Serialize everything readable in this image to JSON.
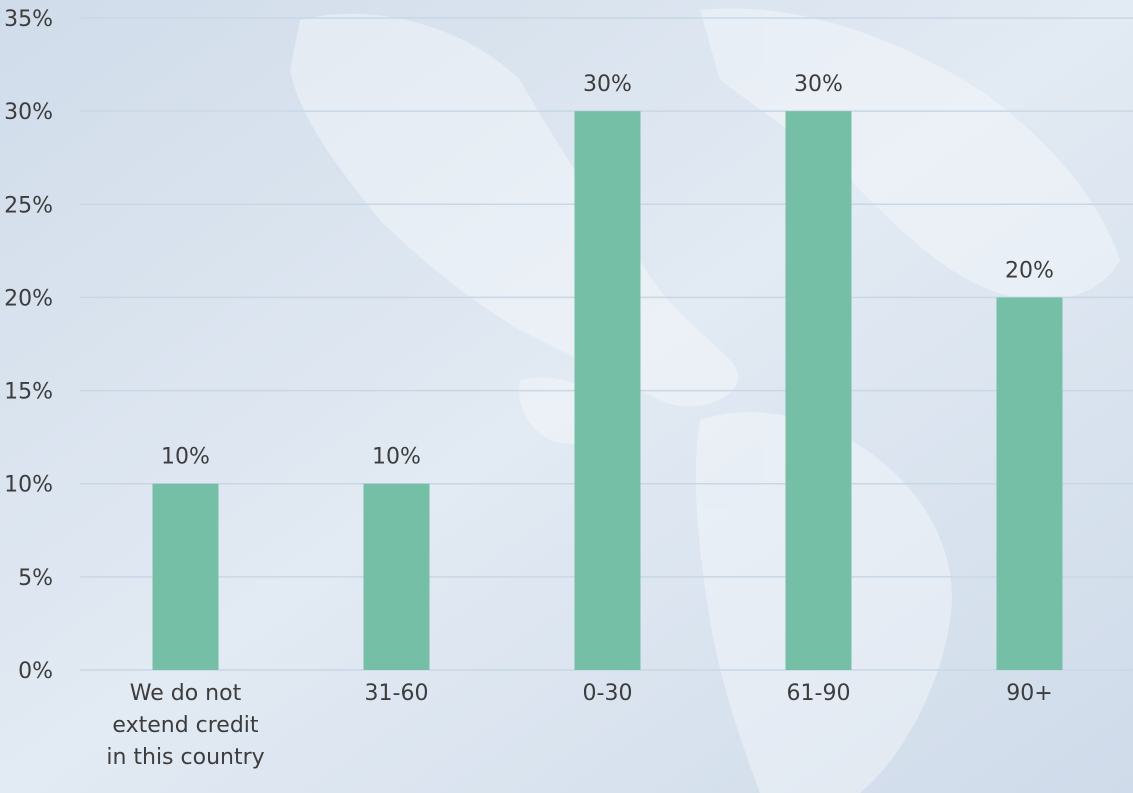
{
  "chart_data": {
    "type": "bar",
    "categories": [
      [
        "We do not",
        "extend credit",
        "in this country"
      ],
      [
        "31-60"
      ],
      [
        "0-30"
      ],
      [
        "61-90"
      ],
      [
        "90+"
      ]
    ],
    "values": [
      10,
      10,
      30,
      30,
      20
    ],
    "data_labels": [
      "10%",
      "10%",
      "30%",
      "30%",
      "20%"
    ],
    "y_ticks": [
      "0%",
      "5%",
      "10%",
      "15%",
      "20%",
      "25%",
      "30%",
      "35%"
    ],
    "ylim": [
      0,
      35
    ],
    "y_step": 5,
    "grid": true,
    "bar_color": "#76bfa7",
    "grid_color": "#c8d7e6",
    "title": "",
    "xlabel": "",
    "ylabel": ""
  }
}
